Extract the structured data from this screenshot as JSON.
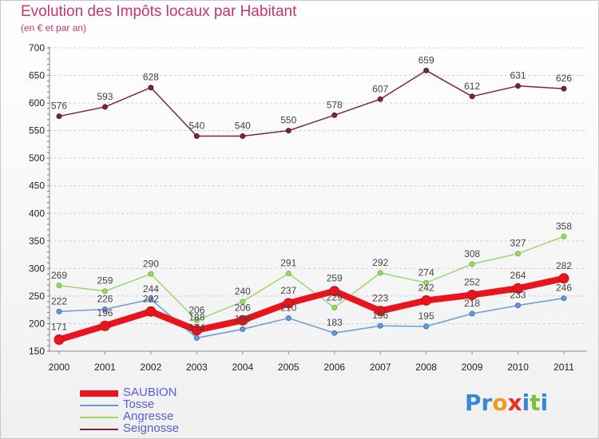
{
  "title": "Evolution des Impôts locaux par Habitant",
  "subtitle": "(en € et par an)",
  "logo": "Proxiti",
  "chart_data": {
    "type": "line",
    "categories": [
      "2000",
      "2001",
      "2002",
      "2003",
      "2004",
      "2005",
      "2006",
      "2007",
      "2008",
      "2009",
      "2010",
      "2011"
    ],
    "ylim": [
      150,
      700
    ],
    "yticks": [
      150,
      200,
      250,
      300,
      350,
      400,
      450,
      500,
      550,
      600,
      650,
      700
    ],
    "grid": "dashed-horizontal",
    "legend_position": "bottom-left",
    "series": [
      {
        "name": "SAUBION",
        "color": "#e8141e",
        "values": [
          171,
          196,
          222,
          188,
          206,
          237,
          259,
          223,
          242,
          252,
          264,
          282
        ]
      },
      {
        "name": "Tosse",
        "color": "#6a9ad8",
        "values": [
          222,
          226,
          244,
          174,
          190,
          210,
          183,
          196,
          195,
          218,
          233,
          246
        ]
      },
      {
        "name": "Angresse",
        "color": "#9ad86a",
        "values": [
          269,
          259,
          290,
          206,
          240,
          291,
          229,
          292,
          274,
          308,
          327,
          358
        ]
      },
      {
        "name": "Seignosse",
        "color": "#7a2a32",
        "values": [
          576,
          593,
          628,
          540,
          540,
          550,
          578,
          607,
          659,
          612,
          631,
          626
        ]
      }
    ]
  }
}
